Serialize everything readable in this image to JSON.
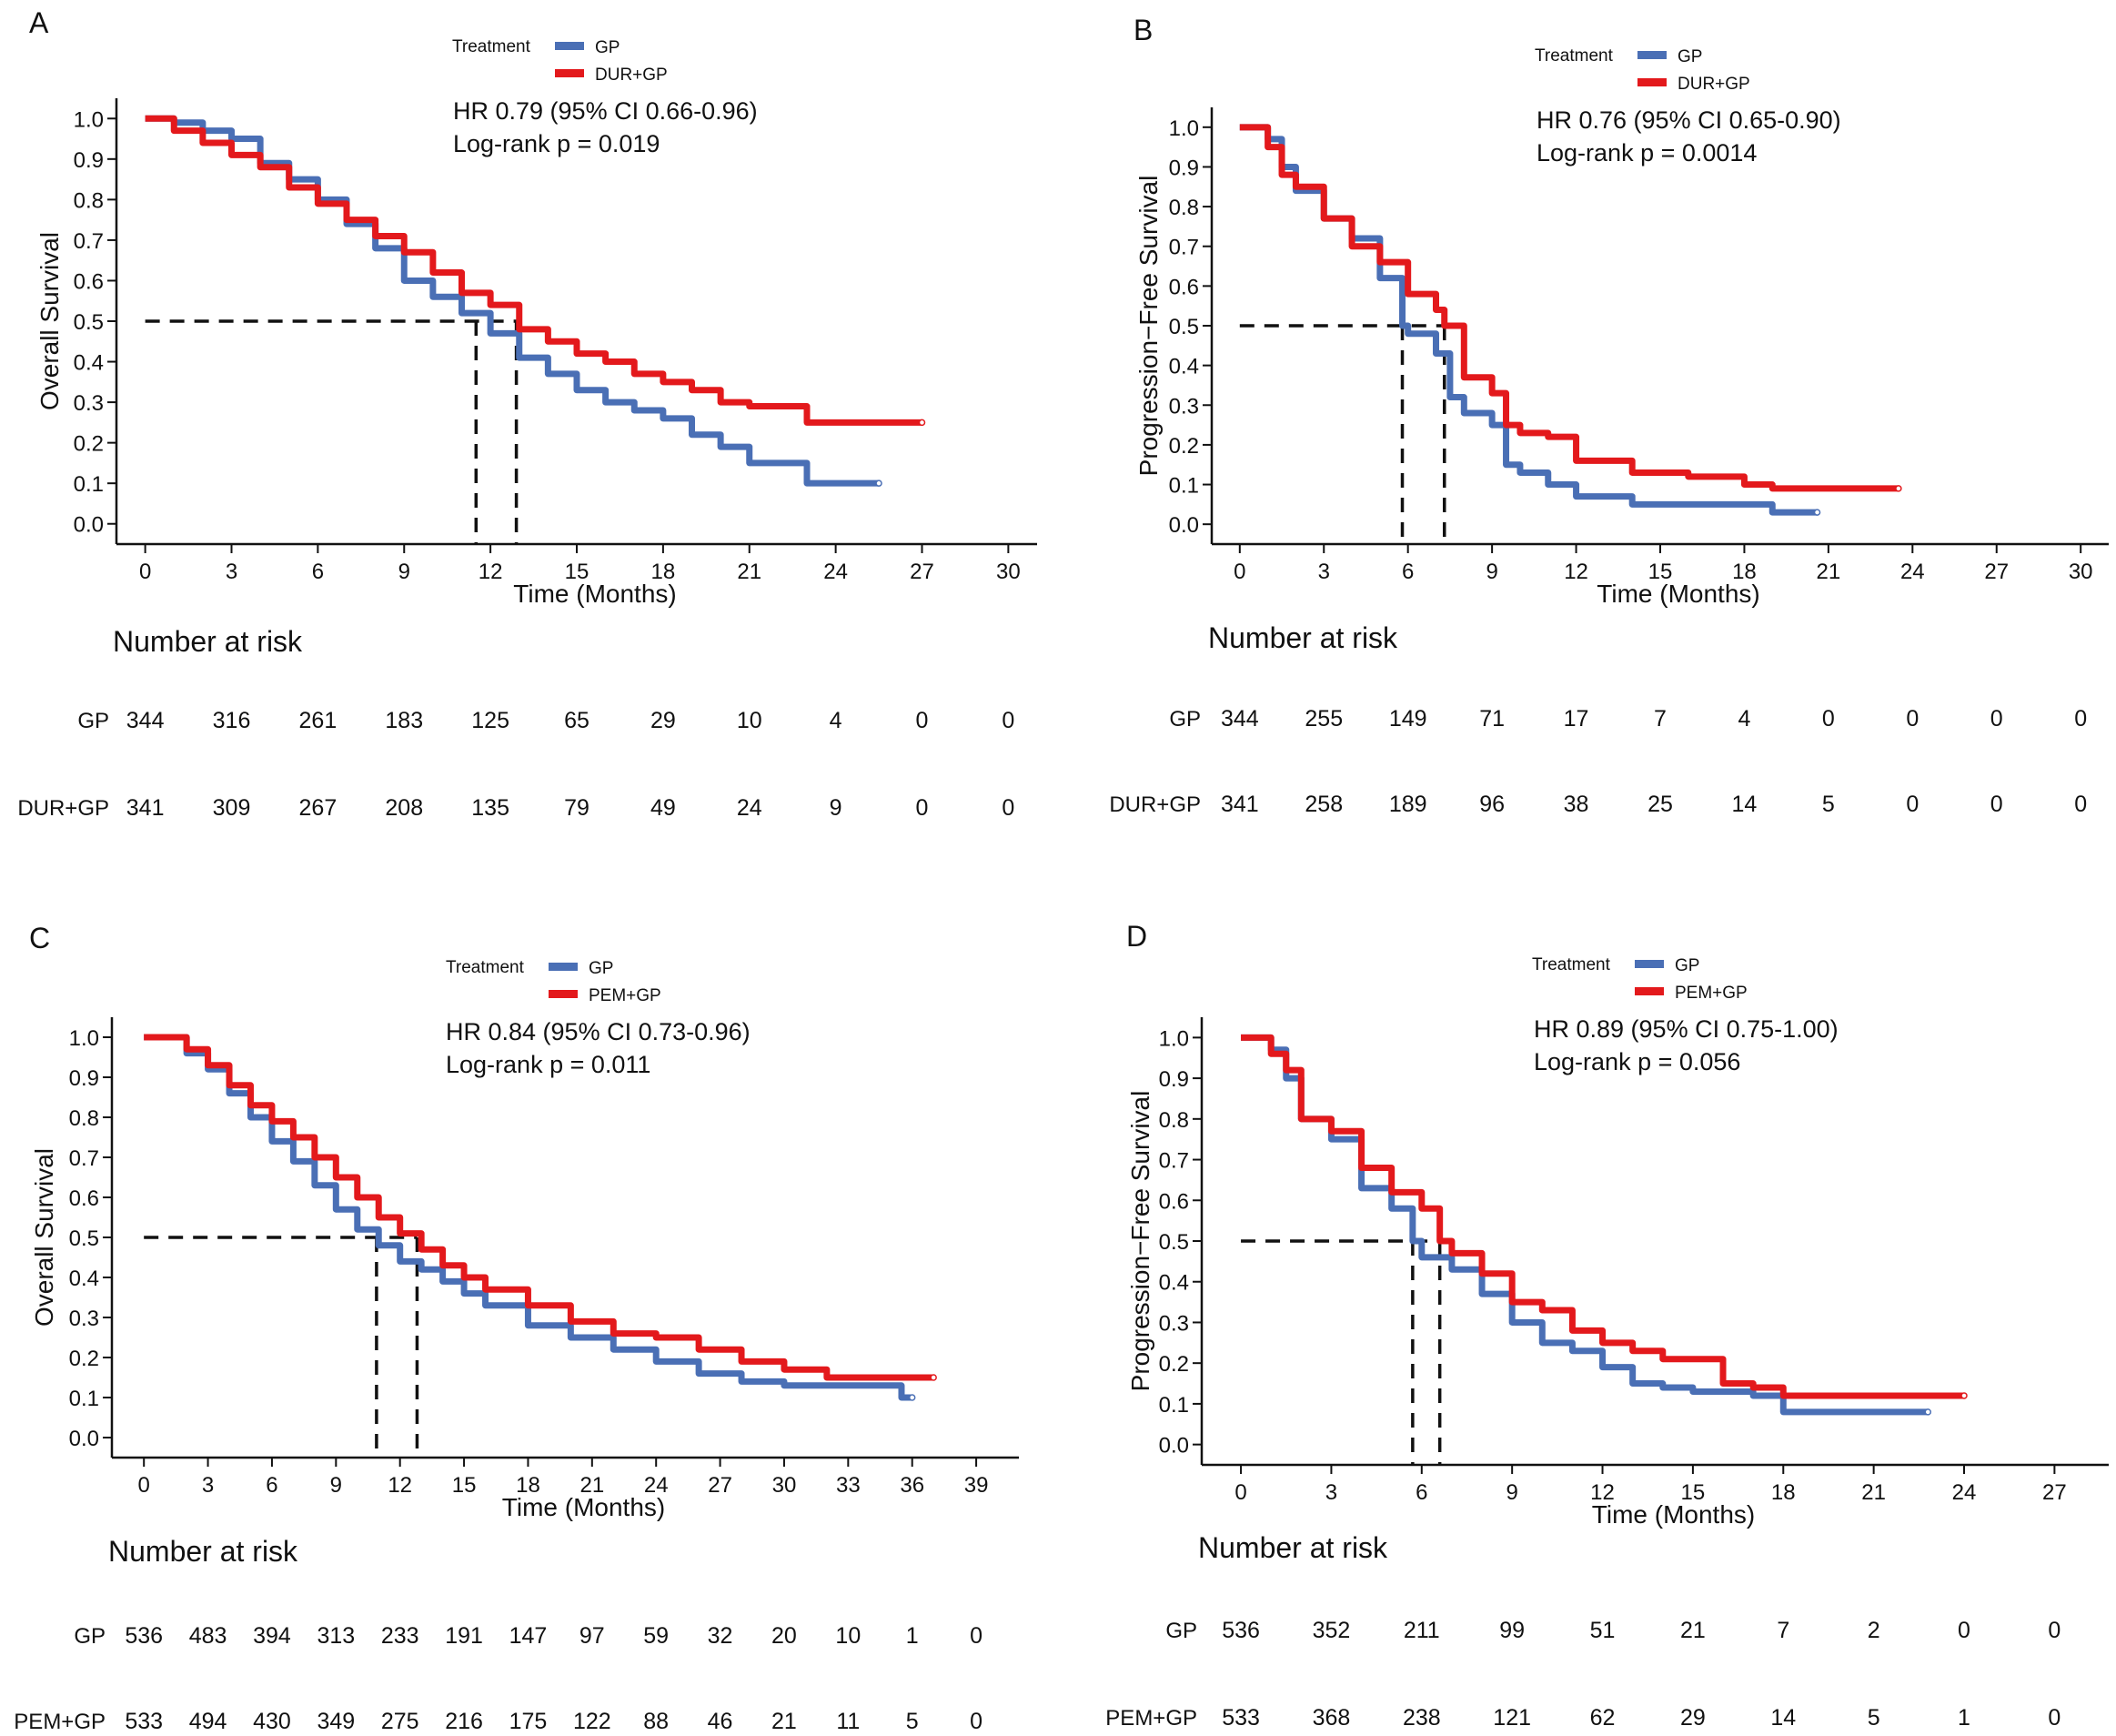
{
  "colors": {
    "gp": "#4a6fb5",
    "combo": "#e3191c",
    "axis": "#111111",
    "median": "#111111"
  },
  "chart_data": [
    {
      "panel": "A",
      "type": "line",
      "subtype": "kaplan-meier",
      "xlabel": "Time (Months)",
      "ylabel": "Overall Survival",
      "xlim": [
        -1,
        31
      ],
      "ylim": [
        -0.05,
        1.05
      ],
      "xticks": [
        0,
        3,
        6,
        9,
        12,
        15,
        18,
        21,
        24,
        27,
        30
      ],
      "yticks": [
        0.0,
        0.1,
        0.2,
        0.3,
        0.4,
        0.5,
        0.6,
        0.7,
        0.8,
        0.9,
        1.0
      ],
      "legend_title": "Treatment",
      "legend_position": "top-center",
      "hr_text": "HR 0.79 (95% CI 0.66-0.96)",
      "p_text": "Log-rank p = 0.019",
      "medians": [
        11.5,
        12.9
      ],
      "series": [
        {
          "name": "GP",
          "color_key": "gp",
          "x": [
            0,
            1,
            2,
            3,
            4,
            5,
            6,
            7,
            8,
            9,
            10,
            11,
            12,
            13,
            14,
            15,
            16,
            17,
            18,
            19,
            20,
            21,
            22,
            23,
            24,
            25.5
          ],
          "y": [
            1.0,
            0.99,
            0.97,
            0.95,
            0.89,
            0.85,
            0.8,
            0.74,
            0.68,
            0.6,
            0.56,
            0.52,
            0.47,
            0.41,
            0.37,
            0.33,
            0.3,
            0.28,
            0.26,
            0.22,
            0.19,
            0.15,
            0.15,
            0.1,
            0.1,
            0.1
          ]
        },
        {
          "name": "DUR+GP",
          "color_key": "combo",
          "x": [
            0,
            1,
            2,
            3,
            4,
            5,
            6,
            7,
            8,
            9,
            10,
            11,
            12,
            13,
            14,
            15,
            16,
            17,
            18,
            19,
            20,
            21,
            22,
            23,
            24,
            27
          ],
          "y": [
            1.0,
            0.97,
            0.94,
            0.91,
            0.88,
            0.83,
            0.79,
            0.75,
            0.71,
            0.67,
            0.62,
            0.57,
            0.54,
            0.48,
            0.45,
            0.42,
            0.4,
            0.37,
            0.35,
            0.33,
            0.3,
            0.29,
            0.29,
            0.25,
            0.25,
            0.25
          ]
        }
      ],
      "risk_table": {
        "title": "Number at risk",
        "rows": [
          {
            "label": "GP",
            "values": [
              "344",
              "316",
              "261",
              "183",
              "125",
              "65",
              "29",
              "10",
              "4",
              "0",
              "0"
            ]
          },
          {
            "label": "DUR+GP",
            "values": [
              "341",
              "309",
              "267",
              "208",
              "135",
              "79",
              "49",
              "24",
              "9",
              "0",
              "0"
            ]
          }
        ]
      }
    },
    {
      "panel": "B",
      "type": "line",
      "subtype": "kaplan-meier",
      "xlabel": "Time (Months)",
      "ylabel": "Progression−Free Survival",
      "xlim": [
        -1,
        31
      ],
      "ylim": [
        -0.05,
        1.05
      ],
      "xticks": [
        0,
        3,
        6,
        9,
        12,
        15,
        18,
        21,
        24,
        27,
        30
      ],
      "yticks": [
        0.0,
        0.1,
        0.2,
        0.3,
        0.4,
        0.5,
        0.6,
        0.7,
        0.8,
        0.9,
        1.0
      ],
      "legend_title": "Treatment",
      "legend_position": "top-center",
      "hr_text": "HR 0.76 (95% CI 0.65-0.90)",
      "p_text": "Log-rank p = 0.0014",
      "medians": [
        5.8,
        7.3
      ],
      "series": [
        {
          "name": "GP",
          "color_key": "gp",
          "x": [
            0,
            1,
            1.5,
            2,
            3,
            4,
            5,
            5.8,
            6,
            7,
            7.5,
            8,
            9,
            9.5,
            10,
            11,
            12,
            14,
            16,
            18,
            19,
            20.6
          ],
          "y": [
            1.0,
            0.97,
            0.9,
            0.84,
            0.77,
            0.72,
            0.62,
            0.5,
            0.48,
            0.43,
            0.32,
            0.28,
            0.25,
            0.15,
            0.13,
            0.1,
            0.07,
            0.05,
            0.05,
            0.05,
            0.03,
            0.03
          ]
        },
        {
          "name": "DUR+GP",
          "color_key": "combo",
          "x": [
            0,
            1,
            1.5,
            2,
            3,
            4,
            5,
            6,
            7,
            7.3,
            8,
            9,
            9.5,
            10,
            11,
            12,
            14,
            16,
            18,
            19,
            23.5
          ],
          "y": [
            1.0,
            0.95,
            0.88,
            0.85,
            0.77,
            0.7,
            0.66,
            0.58,
            0.54,
            0.5,
            0.37,
            0.33,
            0.25,
            0.23,
            0.22,
            0.16,
            0.13,
            0.12,
            0.1,
            0.09,
            0.09
          ]
        }
      ],
      "risk_table": {
        "title": "Number at risk",
        "rows": [
          {
            "label": "GP",
            "values": [
              "344",
              "255",
              "149",
              "71",
              "17",
              "7",
              "4",
              "0",
              "0",
              "0",
              "0"
            ]
          },
          {
            "label": "DUR+GP",
            "values": [
              "341",
              "258",
              "189",
              "96",
              "38",
              "25",
              "14",
              "5",
              "0",
              "0",
              "0"
            ]
          }
        ]
      }
    },
    {
      "panel": "C",
      "type": "line",
      "subtype": "kaplan-meier",
      "xlabel": "Time (Months)",
      "ylabel": "Overall Survival",
      "xlim": [
        -1.5,
        41
      ],
      "ylim": [
        -0.05,
        1.05
      ],
      "xticks": [
        0,
        3,
        6,
        9,
        12,
        15,
        18,
        21,
        24,
        27,
        30,
        33,
        36,
        39
      ],
      "yticks": [
        0.0,
        0.1,
        0.2,
        0.3,
        0.4,
        0.5,
        0.6,
        0.7,
        0.8,
        0.9,
        1.0
      ],
      "legend_title": "Treatment",
      "legend_position": "top-center",
      "hr_text": "HR 0.84 (95% CI 0.73-0.96)",
      "p_text": "Log-rank p = 0.011",
      "medians": [
        10.9,
        12.8
      ],
      "series": [
        {
          "name": "GP",
          "color_key": "gp",
          "x": [
            0,
            2,
            3,
            4,
            5,
            6,
            7,
            8,
            9,
            10,
            11,
            12,
            13,
            14,
            15,
            16,
            18,
            20,
            22,
            24,
            26,
            28,
            30,
            32,
            34,
            35.5,
            36
          ],
          "y": [
            1.0,
            0.96,
            0.92,
            0.86,
            0.8,
            0.74,
            0.69,
            0.63,
            0.57,
            0.52,
            0.48,
            0.44,
            0.42,
            0.39,
            0.36,
            0.33,
            0.28,
            0.25,
            0.22,
            0.19,
            0.16,
            0.14,
            0.13,
            0.13,
            0.13,
            0.1,
            0.1
          ]
        },
        {
          "name": "PEM+GP",
          "color_key": "combo",
          "x": [
            0,
            2,
            3,
            4,
            5,
            6,
            7,
            8,
            9,
            10,
            11,
            12,
            13,
            14,
            15,
            16,
            18,
            20,
            22,
            24,
            26,
            28,
            30,
            32,
            34,
            37
          ],
          "y": [
            1.0,
            0.97,
            0.93,
            0.88,
            0.83,
            0.79,
            0.75,
            0.7,
            0.65,
            0.6,
            0.55,
            0.51,
            0.47,
            0.43,
            0.4,
            0.37,
            0.33,
            0.29,
            0.26,
            0.25,
            0.22,
            0.19,
            0.17,
            0.15,
            0.15,
            0.15
          ]
        }
      ],
      "risk_table": {
        "title": "Number at risk",
        "rows": [
          {
            "label": "GP",
            "values": [
              "536",
              "483",
              "394",
              "313",
              "233",
              "191",
              "147",
              "97",
              "59",
              "32",
              "20",
              "10",
              "1",
              "0"
            ]
          },
          {
            "label": "PEM+GP",
            "values": [
              "533",
              "494",
              "430",
              "349",
              "275",
              "216",
              "175",
              "122",
              "88",
              "46",
              "21",
              "11",
              "5",
              "0"
            ]
          }
        ]
      }
    },
    {
      "panel": "D",
      "type": "line",
      "subtype": "kaplan-meier",
      "xlabel": "Time (Months)",
      "ylabel": "Progression−Free Survival",
      "xlim": [
        -1.3,
        28.8
      ],
      "ylim": [
        -0.05,
        1.05
      ],
      "xticks": [
        0,
        3,
        6,
        9,
        12,
        15,
        18,
        21,
        24,
        27
      ],
      "yticks": [
        0.0,
        0.1,
        0.2,
        0.3,
        0.4,
        0.5,
        0.6,
        0.7,
        0.8,
        0.9,
        1.0
      ],
      "legend_title": "Treatment",
      "legend_position": "top-center",
      "hr_text": "HR 0.89 (95% CI 0.75-1.00)",
      "p_text": "Log-rank p = 0.056",
      "medians": [
        5.7,
        6.6
      ],
      "series": [
        {
          "name": "GP",
          "color_key": "gp",
          "x": [
            0,
            1,
            1.5,
            2,
            3,
            4,
            5,
            5.7,
            6,
            7,
            8,
            9,
            10,
            11,
            12,
            13,
            14,
            15,
            16,
            17,
            18,
            20,
            22.8
          ],
          "y": [
            1.0,
            0.97,
            0.9,
            0.8,
            0.75,
            0.63,
            0.58,
            0.5,
            0.46,
            0.43,
            0.37,
            0.3,
            0.25,
            0.23,
            0.19,
            0.15,
            0.14,
            0.13,
            0.13,
            0.12,
            0.08,
            0.08,
            0.08
          ]
        },
        {
          "name": "PEM+GP",
          "color_key": "combo",
          "x": [
            0,
            1,
            1.5,
            2,
            3,
            4,
            5,
            6,
            6.6,
            7,
            8,
            9,
            10,
            11,
            12,
            13,
            14,
            15,
            16,
            17,
            18,
            20,
            24
          ],
          "y": [
            1.0,
            0.96,
            0.92,
            0.8,
            0.77,
            0.68,
            0.62,
            0.58,
            0.5,
            0.47,
            0.42,
            0.35,
            0.33,
            0.28,
            0.25,
            0.23,
            0.21,
            0.21,
            0.15,
            0.14,
            0.12,
            0.12,
            0.12
          ]
        }
      ],
      "risk_table": {
        "title": "Number at risk",
        "rows": [
          {
            "label": "GP",
            "values": [
              "536",
              "352",
              "211",
              "99",
              "51",
              "21",
              "7",
              "2",
              "0",
              "0"
            ]
          },
          {
            "label": "PEM+GP",
            "values": [
              "533",
              "368",
              "238",
              "121",
              "62",
              "29",
              "14",
              "5",
              "1",
              "0"
            ]
          }
        ]
      }
    }
  ]
}
